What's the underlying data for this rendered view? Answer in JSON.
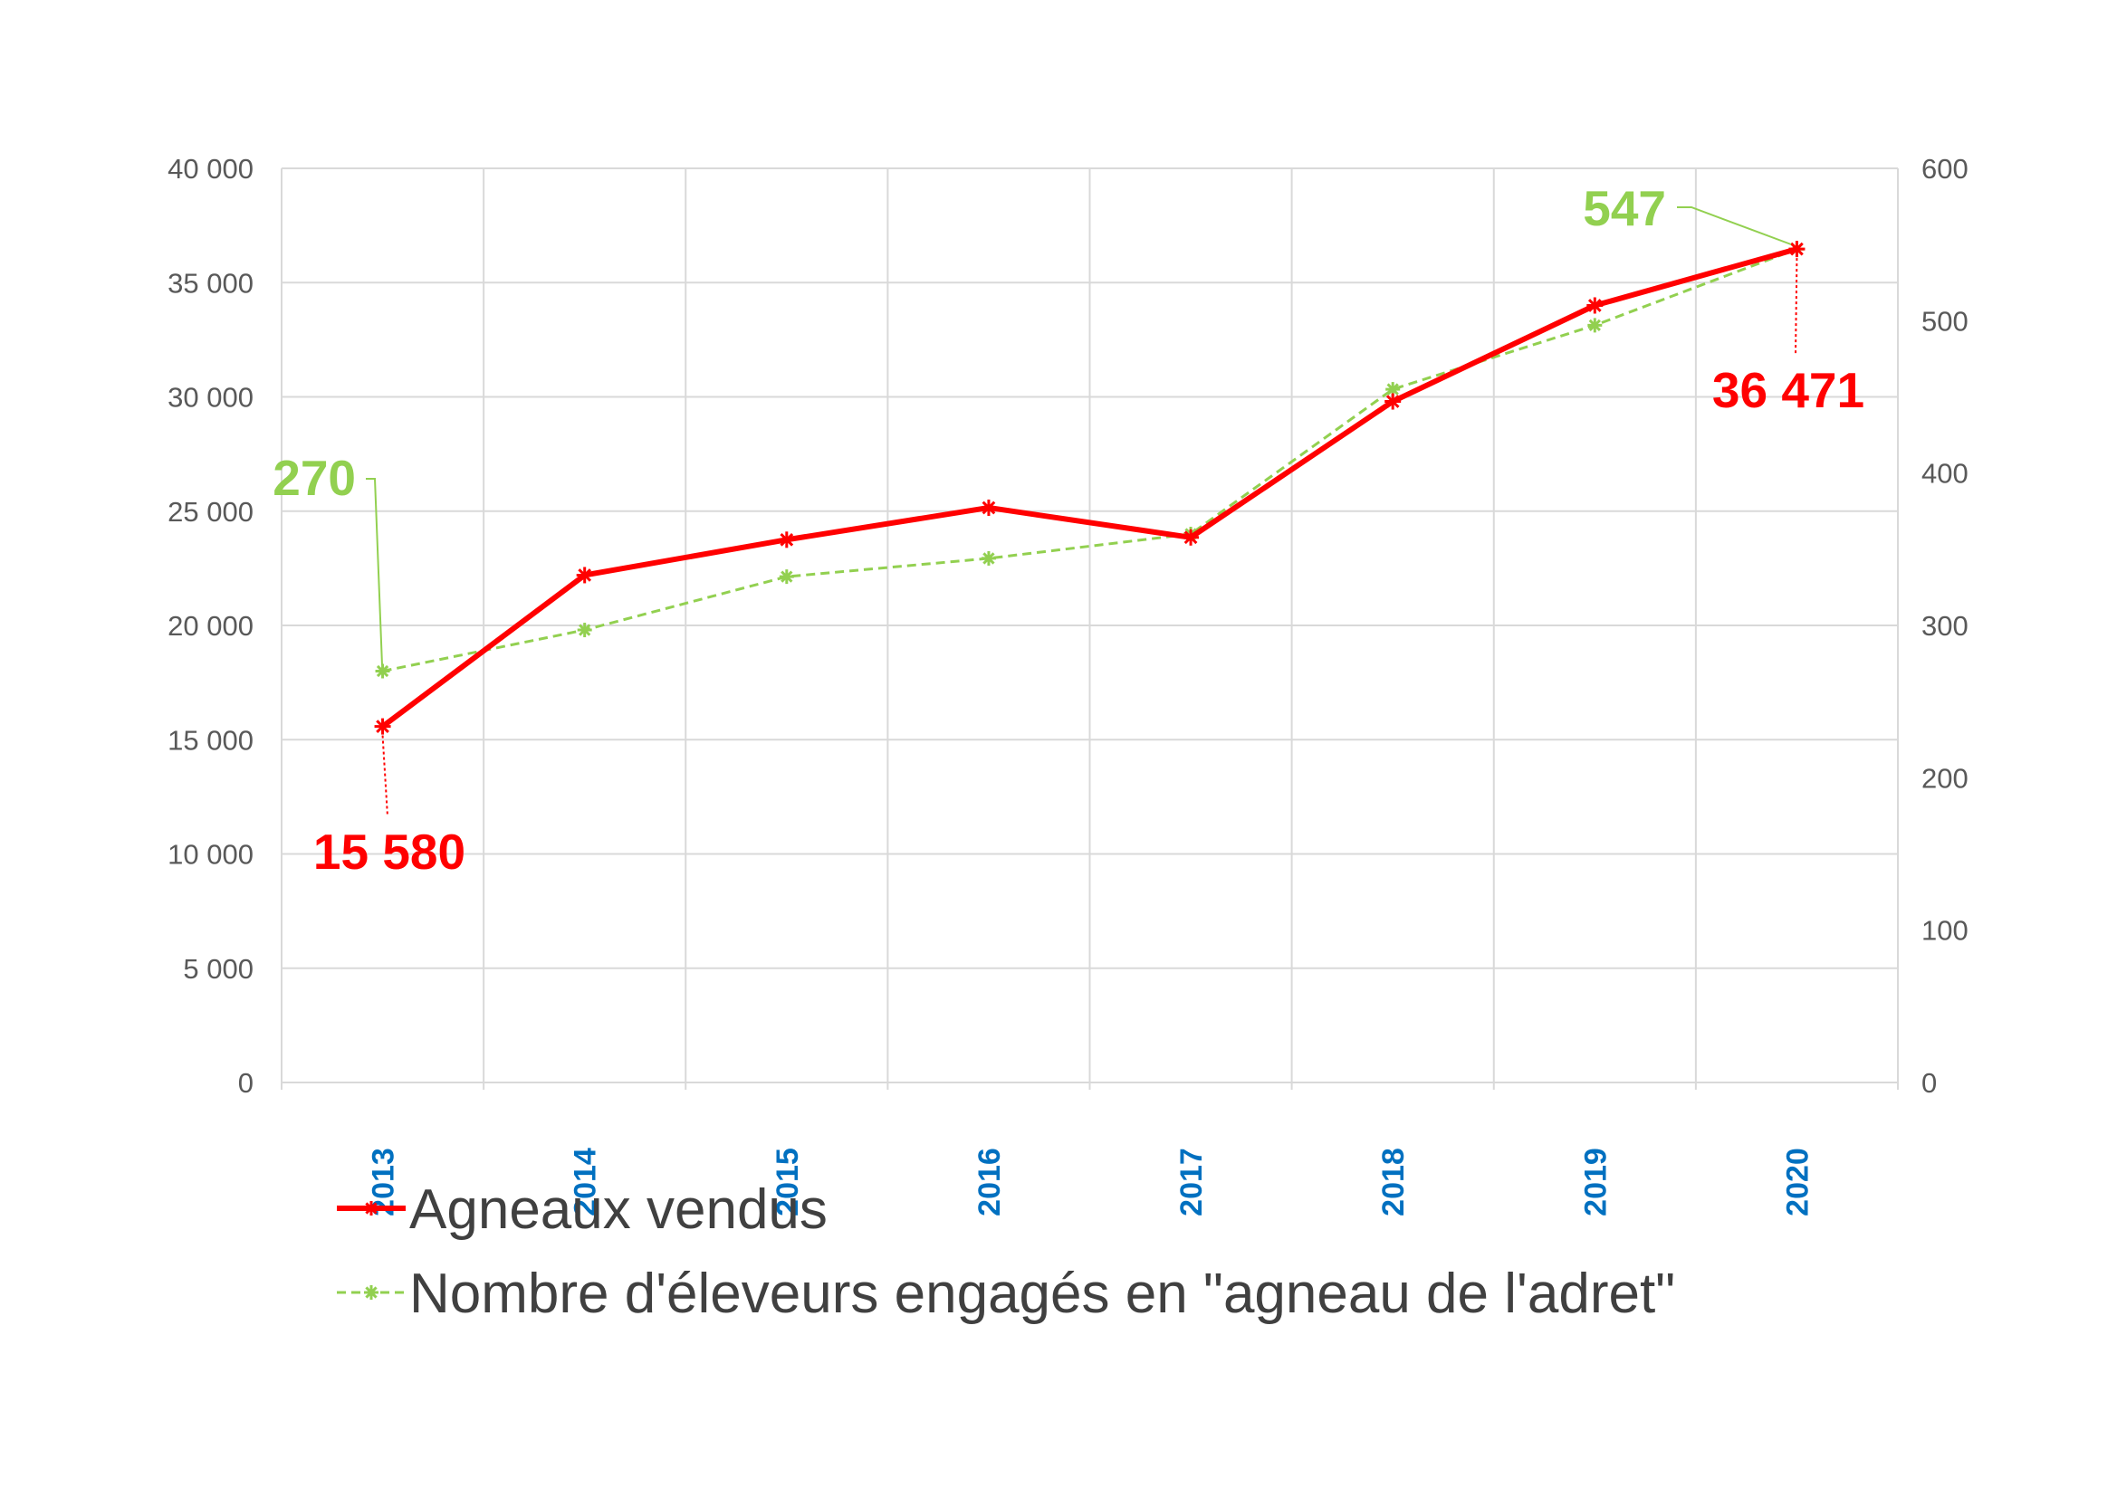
{
  "chart_data": {
    "type": "line",
    "title": "",
    "xlabel": "",
    "ylabel": "",
    "categories": [
      "2013",
      "2014",
      "2015",
      "2016",
      "2017",
      "2018",
      "2019",
      "2020"
    ],
    "y_left": {
      "min": 0,
      "max": 40000,
      "step": 5000,
      "tick_labels": [
        "0",
        "5 000",
        "10 000",
        "15 000",
        "20 000",
        "25 000",
        "30 000",
        "35 000",
        "40 000"
      ]
    },
    "y_right": {
      "min": 0,
      "max": 600,
      "step": 100,
      "tick_labels": [
        "0",
        "100",
        "200",
        "300",
        "400",
        "500",
        "600"
      ]
    },
    "grid": true,
    "legend_position": "bottom-left",
    "series": [
      {
        "name": "Agneaux vendus",
        "axis": "left",
        "color": "#ff0000",
        "style": "solid",
        "values": [
          15580,
          22200,
          23750,
          25150,
          23850,
          29800,
          34000,
          36471
        ]
      },
      {
        "name": "Nombre d'éleveurs engagés en \"agneau de l'adret\"",
        "axis": "right",
        "color": "#92d050",
        "style": "dashed",
        "values": [
          270,
          297,
          332,
          344,
          360,
          455,
          497,
          547
        ]
      }
    ],
    "annotations": [
      {
        "series": 0,
        "index": 0,
        "text": "15 580"
      },
      {
        "series": 0,
        "index": 7,
        "text": "36 471"
      },
      {
        "series": 1,
        "index": 0,
        "text": "270"
      },
      {
        "series": 1,
        "index": 7,
        "text": "547"
      }
    ]
  }
}
